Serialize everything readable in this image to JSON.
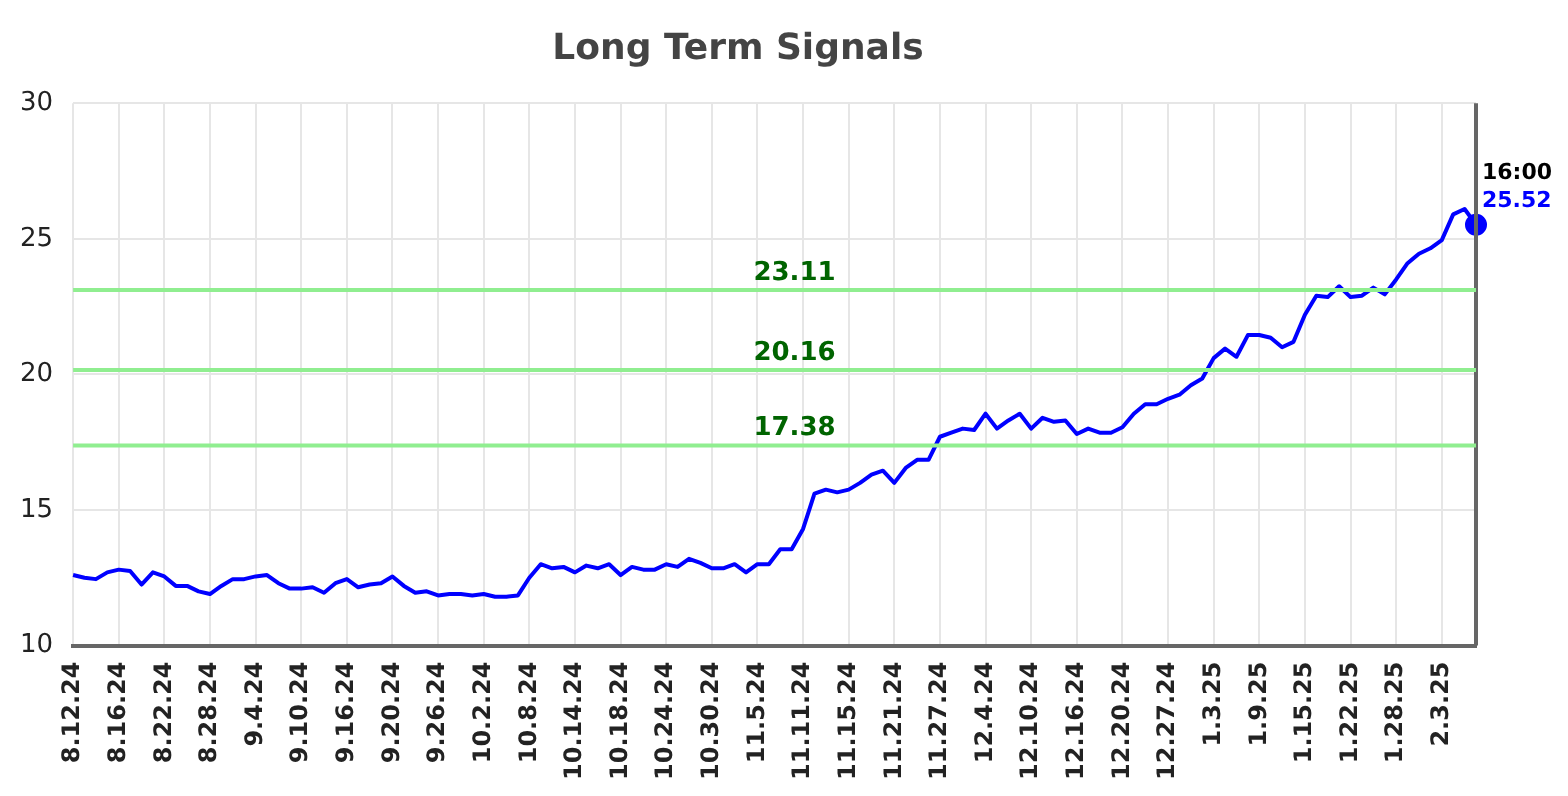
{
  "chart_data": {
    "type": "line",
    "title": "Long Term Signals",
    "categories": [
      "8.12.24",
      null,
      null,
      null,
      "8.16.24",
      null,
      null,
      null,
      "8.22.24",
      null,
      null,
      null,
      "8.28.24",
      null,
      null,
      null,
      "9.4.24",
      null,
      null,
      null,
      "9.10.24",
      null,
      null,
      null,
      "9.16.24",
      null,
      null,
      null,
      "9.20.24",
      null,
      null,
      null,
      "9.26.24",
      null,
      null,
      null,
      "10.2.24",
      null,
      null,
      null,
      "10.8.24",
      null,
      null,
      null,
      "10.14.24",
      null,
      null,
      null,
      "10.18.24",
      null,
      null,
      null,
      "10.24.24",
      null,
      null,
      null,
      "10.30.24",
      null,
      null,
      null,
      "11.5.24",
      null,
      null,
      null,
      "11.11.24",
      null,
      null,
      null,
      "11.15.24",
      null,
      null,
      null,
      "11.21.24",
      null,
      null,
      null,
      "11.27.24",
      null,
      null,
      null,
      "12.4.24",
      null,
      null,
      null,
      "12.10.24",
      null,
      null,
      null,
      "12.16.24",
      null,
      null,
      null,
      "12.20.24",
      null,
      null,
      null,
      "12.27.24",
      null,
      null,
      null,
      "1.3.25",
      null,
      null,
      null,
      "1.9.25",
      null,
      null,
      null,
      "1.15.25",
      null,
      null,
      null,
      "1.22.25",
      null,
      null,
      null,
      "1.28.25",
      null,
      null,
      null,
      "2.3.25",
      null,
      null,
      null
    ],
    "series": [
      {
        "color": "#0000ff",
        "values": [
          12.6,
          12.5,
          12.45,
          12.7,
          12.8,
          12.75,
          12.25,
          12.7,
          12.55,
          12.2,
          12.2,
          12.0,
          11.9,
          12.2,
          12.45,
          12.45,
          12.55,
          12.6,
          12.3,
          12.1,
          12.1,
          12.15,
          11.95,
          12.3,
          12.45,
          12.15,
          12.25,
          12.3,
          12.55,
          12.2,
          11.95,
          12.0,
          11.85,
          11.9,
          11.9,
          11.85,
          11.9,
          11.8,
          11.8,
          11.85,
          12.5,
          13.0,
          12.85,
          12.9,
          12.7,
          12.95,
          12.85,
          13.0,
          12.6,
          12.9,
          12.8,
          12.8,
          13.0,
          12.9,
          13.2,
          13.05,
          12.85,
          12.85,
          13.0,
          12.7,
          13.0,
          13.0,
          13.55,
          13.55,
          14.3,
          15.6,
          15.75,
          15.65,
          15.75,
          16.0,
          16.3,
          16.45,
          16.0,
          16.55,
          16.85,
          16.85,
          17.7,
          17.85,
          18.0,
          17.95,
          18.55,
          18.0,
          18.3,
          18.55,
          18.0,
          18.4,
          18.25,
          18.3,
          17.8,
          18.0,
          17.85,
          17.85,
          18.05,
          18.55,
          18.9,
          18.9,
          19.1,
          19.25,
          19.6,
          19.85,
          20.6,
          20.95,
          20.65,
          21.45,
          21.45,
          21.35,
          21.0,
          21.2,
          22.2,
          22.9,
          22.85,
          23.25,
          22.85,
          22.9,
          23.2,
          22.95,
          23.5,
          24.1,
          24.45,
          24.65,
          24.95,
          25.9,
          26.1,
          25.52
        ],
        "value_labels": [
          null,
          null,
          null,
          null,
          null,
          null,
          null,
          null,
          null,
          null,
          null,
          null,
          null,
          null,
          null,
          null,
          null,
          null,
          null,
          null,
          null,
          null,
          null,
          null,
          null,
          null,
          null,
          null,
          null,
          null,
          null,
          null,
          null,
          null,
          null,
          null,
          null,
          null,
          null,
          null,
          null,
          null,
          null,
          null,
          null,
          null,
          null,
          null,
          null,
          null,
          null,
          null,
          null,
          null,
          null,
          null,
          null,
          null,
          null,
          null,
          null,
          null,
          null,
          null,
          null,
          null,
          null,
          null,
          null,
          null,
          null,
          null,
          null,
          null,
          null,
          null,
          null,
          null,
          null,
          null,
          null,
          null,
          null,
          null,
          null,
          null,
          null,
          null,
          null,
          null,
          null,
          null,
          null,
          null,
          null,
          null,
          null,
          null,
          null,
          null,
          null,
          null,
          null,
          null,
          null,
          null,
          null,
          null,
          null,
          null,
          null,
          null,
          null,
          null,
          null,
          null,
          null,
          null,
          null,
          null,
          null,
          null,
          null,
          "25.52"
        ]
      }
    ],
    "ylim": [
      10,
      30
    ],
    "yticks": [
      10,
      15,
      20,
      25,
      30
    ],
    "grid": true,
    "legend": false,
    "marker": "none",
    "ref_lines": [
      {
        "axis": "y",
        "value": 23.11,
        "label": "23.11",
        "color": "#90ee90"
      },
      {
        "axis": "y",
        "value": 20.16,
        "label": "20.16",
        "color": "#90ee90"
      },
      {
        "axis": "y",
        "value": 17.38,
        "label": "17.38",
        "color": "#90ee90"
      }
    ],
    "annotations": [
      "16:00"
    ]
  }
}
